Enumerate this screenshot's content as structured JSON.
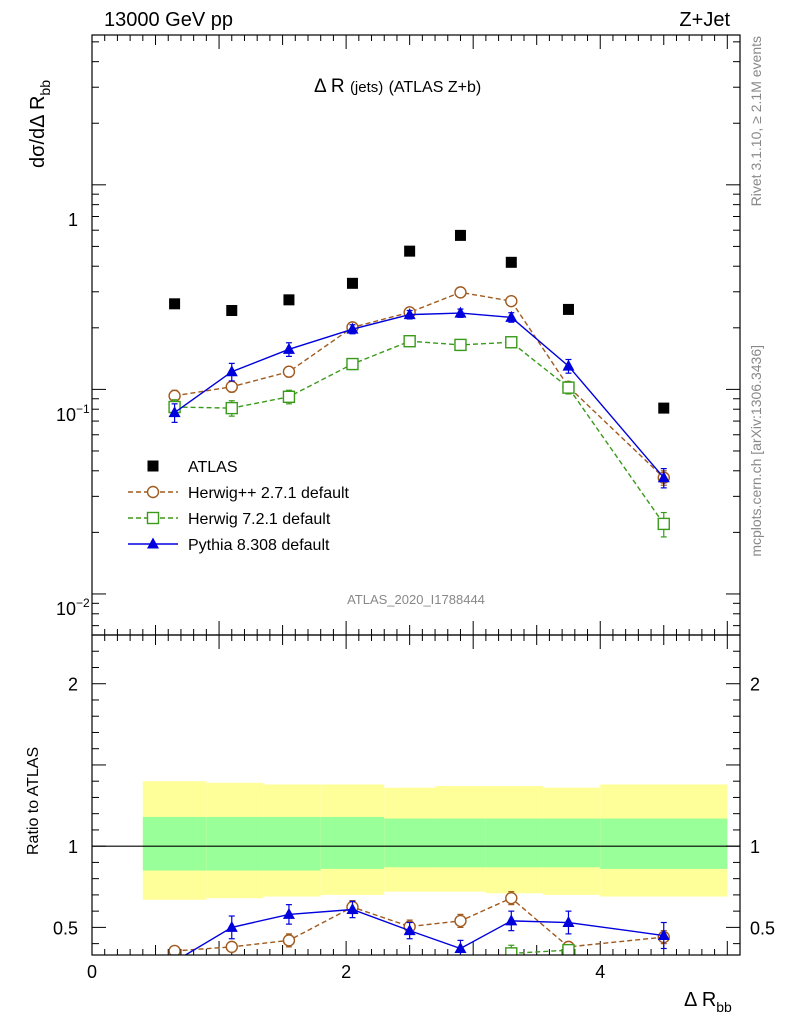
{
  "header": {
    "left": "13000 GeV pp",
    "right": "Z+Jet",
    "side_rivet": "Rivet 3.1.10, ≥ 2.1M events",
    "side_mcplots": "mcplots.cern.ch [arXiv:1306.3436]"
  },
  "chart_data": [
    {
      "type": "scatter",
      "panel": "main",
      "title": "Δ R (jets) (ATLAS Z+b)",
      "title_main": "Δ R",
      "title_sub": "(jets)",
      "title_tail": "(ATLAS Z+b)",
      "watermark": "ATLAS_2020_I1788444",
      "ylabel": "dσ/dΔ R",
      "ylabel_sub": "bb",
      "yscale": "log",
      "ylim": [
        0.0063,
        5.4
      ],
      "xlim": [
        0,
        5.1
      ],
      "ytick_labels": {
        "major_1": "1",
        "major_01_base": "10",
        "major_01_exp": "−1",
        "major_001_base": "10",
        "major_001_exp": "−2"
      },
      "legend_position": "middle-left",
      "series": [
        {
          "name": "ATLAS",
          "style": "data",
          "color": "#000000",
          "x": [
            0.65,
            1.1,
            1.55,
            2.05,
            2.5,
            2.9,
            3.3,
            3.75,
            4.5
          ],
          "y": [
            0.262,
            0.243,
            0.274,
            0.33,
            0.474,
            0.566,
            0.418,
            0.246,
            0.081
          ]
        },
        {
          "name": "Herwig++ 2.7.1 default",
          "style": "dashed-circle",
          "color": "#a05a1e",
          "x": [
            0.65,
            1.1,
            1.55,
            2.05,
            2.5,
            2.9,
            3.3,
            3.75,
            4.5
          ],
          "y": [
            0.093,
            0.103,
            0.122,
            0.201,
            0.238,
            0.298,
            0.27,
            0.103,
            0.037
          ],
          "err": [
            0.006,
            0.006,
            0.007,
            0.009,
            0.011,
            0.012,
            0.012,
            0.006,
            0.003
          ]
        },
        {
          "name": "Herwig 7.2.1 default",
          "style": "dashed-square",
          "color": "#3a9a1a",
          "x": [
            0.65,
            1.1,
            1.55,
            2.05,
            2.5,
            2.9,
            3.3,
            3.75,
            4.5
          ],
          "y": [
            0.082,
            0.081,
            0.092,
            0.133,
            0.172,
            0.165,
            0.17,
            0.102,
            0.022
          ],
          "err": [
            0.007,
            0.007,
            0.007,
            0.008,
            0.01,
            0.01,
            0.01,
            0.007,
            0.003
          ]
        },
        {
          "name": "Pythia 8.308 default",
          "style": "solid-triangle",
          "color": "#0000dd",
          "x": [
            0.65,
            1.1,
            1.55,
            2.05,
            2.5,
            2.9,
            3.3,
            3.75,
            4.5
          ],
          "y": [
            0.077,
            0.122,
            0.157,
            0.197,
            0.232,
            0.236,
            0.225,
            0.13,
            0.037
          ],
          "err": [
            0.008,
            0.012,
            0.012,
            0.01,
            0.011,
            0.011,
            0.012,
            0.01,
            0.004
          ]
        }
      ]
    },
    {
      "type": "scatter",
      "panel": "ratio",
      "ylabel": "Ratio to ATLAS",
      "xlabel": "Δ R",
      "xlabel_sub": "bb",
      "xlim": [
        0,
        5.1
      ],
      "ylim": [
        0.33,
        2.3
      ],
      "xticks": [
        0,
        2,
        4
      ],
      "yticks": [
        0.5,
        1,
        2
      ],
      "bands": {
        "edges": [
          0.4,
          0.9,
          1.35,
          1.8,
          2.3,
          2.7,
          3.1,
          3.55,
          4.0,
          5.0
        ],
        "yellow_lo": [
          0.67,
          0.68,
          0.69,
          0.7,
          0.72,
          0.72,
          0.71,
          0.7,
          0.69
        ],
        "yellow_hi": [
          1.4,
          1.39,
          1.38,
          1.38,
          1.36,
          1.37,
          1.37,
          1.36,
          1.38
        ],
        "green_lo": [
          0.85,
          0.85,
          0.85,
          0.86,
          0.87,
          0.87,
          0.87,
          0.87,
          0.86
        ],
        "green_hi": [
          1.18,
          1.18,
          1.18,
          1.18,
          1.17,
          1.17,
          1.17,
          1.17,
          1.17
        ]
      },
      "series": [
        {
          "name": "Herwig++ 2.7.1 default",
          "style": "dashed-circle",
          "color": "#a05a1e",
          "x": [
            0.65,
            1.1,
            1.55,
            2.05,
            2.5,
            2.9,
            3.3,
            3.75,
            4.5
          ],
          "y": [
            0.355,
            0.38,
            0.42,
            0.625,
            0.505,
            0.54,
            0.68,
            0.38,
            0.44
          ],
          "err": [
            0.03,
            0.03,
            0.04,
            0.04,
            0.04,
            0.04,
            0.04,
            0.03,
            0.04
          ]
        },
        {
          "name": "Herwig 7.2.1 default",
          "style": "dashed-square",
          "color": "#3a9a1a",
          "x": [
            3.3,
            3.75
          ],
          "y": [
            0.34,
            0.36
          ],
          "err": [
            0.05,
            0.03
          ]
        },
        {
          "name": "Pythia 8.308 default",
          "style": "solid-triangle",
          "color": "#0000dd",
          "x": [
            0.65,
            1.1,
            1.55,
            2.05,
            2.5,
            2.9,
            3.3,
            3.75,
            4.5
          ],
          "y": [
            0.29,
            0.5,
            0.58,
            0.61,
            0.48,
            0.37,
            0.54,
            0.53,
            0.45
          ],
          "err": [
            0.04,
            0.07,
            0.06,
            0.05,
            0.05,
            0.05,
            0.06,
            0.07,
            0.08
          ]
        }
      ]
    }
  ]
}
